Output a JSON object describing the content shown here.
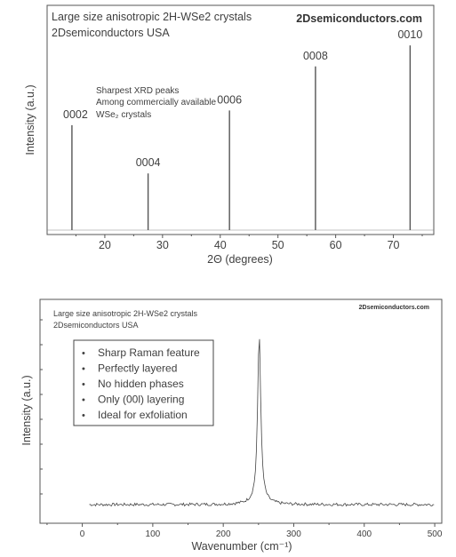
{
  "chart_data": [
    {
      "type": "line",
      "title_lines": [
        "Large size anisotropic 2H-WSe2 crystals",
        "2Dsemiconductors USA"
      ],
      "brand": "2Dsemiconductors.com",
      "xlabel": "2Θ (degrees)",
      "ylabel": "Intensity (a.u.)",
      "xlim": [
        10,
        77
      ],
      "ylim": [
        0,
        1.05
      ],
      "xticks": [
        20,
        30,
        40,
        50,
        60,
        70
      ],
      "annotation": [
        "Sharpest XRD peaks",
        "Among commercially available",
        "WSe₂ crystals"
      ],
      "peaks": [
        {
          "label": "0002",
          "x": 14.3,
          "y": 0.5
        },
        {
          "label": "0004",
          "x": 27.5,
          "y": 0.27
        },
        {
          "label": "0006",
          "x": 41.6,
          "y": 0.57
        },
        {
          "label": "0008",
          "x": 56.5,
          "y": 0.78
        },
        {
          "label": "0010",
          "x": 72.9,
          "y": 0.88
        }
      ],
      "grid": false
    },
    {
      "type": "line",
      "title_lines": [
        "Large size anisotropic 2H-WSe2 crystals",
        "2Dsemiconductors USA"
      ],
      "brand": "2Dsemiconductors.com",
      "xlabel": "Wavenumber (cm⁻¹)",
      "ylabel": "Intensity (a.u.)",
      "xlim": [
        -60,
        510
      ],
      "ylim": [
        0,
        1.2
      ],
      "xticks": [
        0,
        100,
        200,
        300,
        400,
        500
      ],
      "bullets": [
        "Sharp Raman feature",
        "Perfectly  layered",
        "No hidden phases",
        "Only (00l) layering",
        "Ideal for exfoliation"
      ],
      "series": [
        {
          "x_range": [
            10,
            500
          ],
          "baseline": 0.1,
          "peak_x": 251,
          "peak_y": 1.0
        }
      ],
      "grid": false
    }
  ]
}
